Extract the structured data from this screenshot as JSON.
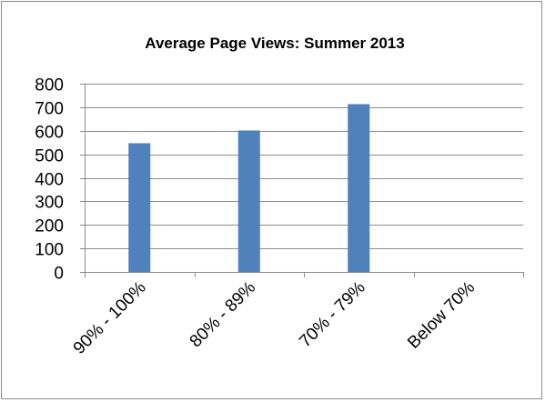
{
  "chart_data": {
    "type": "bar",
    "title": "Average Page Views: Summer 2013",
    "xlabel": "",
    "ylabel": "",
    "categories": [
      "90% - 100%",
      "80% - 89%",
      "70% - 79%",
      "Below 70%"
    ],
    "values": [
      547,
      601,
      713,
      0
    ],
    "ylim": [
      0,
      800
    ],
    "yticks": [
      "0",
      "100",
      "200",
      "300",
      "400",
      "500",
      "600",
      "700",
      "800"
    ],
    "grid": true,
    "legend": "none",
    "colors": {
      "bar": "#4f81bd",
      "gridline": "#8c8c8c",
      "axis": "#8c8c8c"
    }
  }
}
